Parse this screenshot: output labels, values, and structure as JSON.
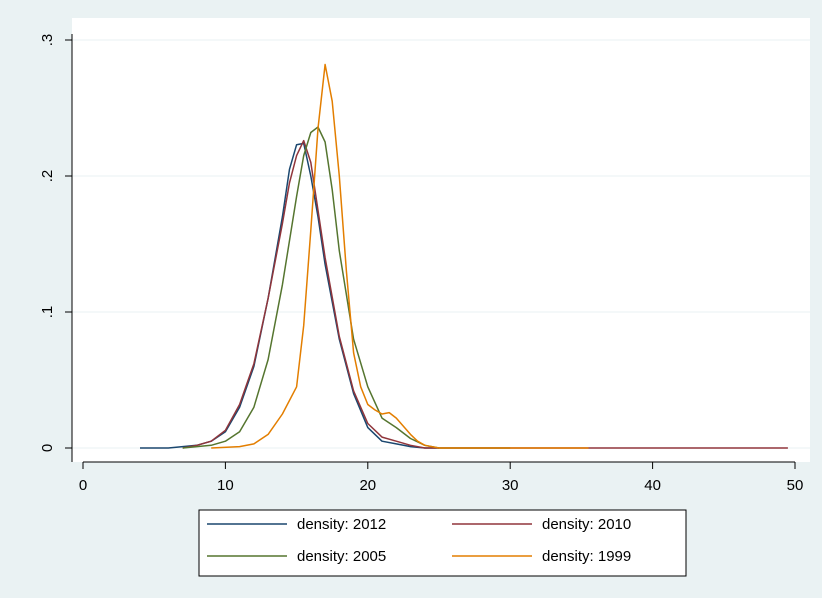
{
  "chart_data": {
    "type": "line",
    "title": "",
    "xlabel": "",
    "ylabel": "",
    "xlim": [
      0,
      50
    ],
    "ylim": [
      0,
      0.3
    ],
    "x_ticks": [
      {
        "value": 0,
        "label": "0"
      },
      {
        "value": 10,
        "label": "10"
      },
      {
        "value": 20,
        "label": "20"
      },
      {
        "value": 30,
        "label": "30"
      },
      {
        "value": 40,
        "label": "40"
      },
      {
        "value": 50,
        "label": "50"
      }
    ],
    "y_ticks": [
      {
        "value": 0,
        "label": "0"
      },
      {
        "value": 0.1,
        "label": ".1"
      },
      {
        "value": 0.2,
        "label": ".2"
      },
      {
        "value": 0.3,
        "label": ".3"
      }
    ],
    "grid": "horizontal",
    "legend_position": "bottom",
    "series": [
      {
        "name": "density: 2012",
        "color": "#1a476f",
        "points": [
          [
            4,
            0
          ],
          [
            6,
            0
          ],
          [
            7,
            0.001
          ],
          [
            8,
            0.002
          ],
          [
            9,
            0.005
          ],
          [
            10,
            0.012
          ],
          [
            11,
            0.03
          ],
          [
            12,
            0.06
          ],
          [
            13,
            0.11
          ],
          [
            14,
            0.17
          ],
          [
            14.5,
            0.205
          ],
          [
            15,
            0.223
          ],
          [
            15.5,
            0.224
          ],
          [
            16,
            0.2
          ],
          [
            16.5,
            0.17
          ],
          [
            17,
            0.135
          ],
          [
            18,
            0.08
          ],
          [
            19,
            0.04
          ],
          [
            20,
            0.015
          ],
          [
            21,
            0.005
          ],
          [
            22,
            0.003
          ],
          [
            23,
            0.001
          ],
          [
            24,
            0
          ],
          [
            25,
            0
          ]
        ]
      },
      {
        "name": "density: 2010",
        "color": "#90353b",
        "points": [
          [
            7,
            0
          ],
          [
            8,
            0.002
          ],
          [
            9,
            0.005
          ],
          [
            10,
            0.013
          ],
          [
            11,
            0.032
          ],
          [
            12,
            0.062
          ],
          [
            13,
            0.11
          ],
          [
            14,
            0.165
          ],
          [
            14.5,
            0.195
          ],
          [
            15,
            0.215
          ],
          [
            15.5,
            0.226
          ],
          [
            16,
            0.21
          ],
          [
            17,
            0.14
          ],
          [
            18,
            0.082
          ],
          [
            19,
            0.042
          ],
          [
            20,
            0.018
          ],
          [
            21,
            0.008
          ],
          [
            22,
            0.005
          ],
          [
            23,
            0.002
          ],
          [
            24,
            0
          ],
          [
            30,
            0
          ],
          [
            40,
            0
          ],
          [
            49.5,
            0
          ]
        ]
      },
      {
        "name": "density: 2005",
        "color": "#55752f",
        "points": [
          [
            7,
            0
          ],
          [
            9,
            0.002
          ],
          [
            10,
            0.005
          ],
          [
            11,
            0.012
          ],
          [
            12,
            0.03
          ],
          [
            13,
            0.065
          ],
          [
            14,
            0.12
          ],
          [
            15,
            0.185
          ],
          [
            15.5,
            0.215
          ],
          [
            16,
            0.232
          ],
          [
            16.5,
            0.236
          ],
          [
            17,
            0.225
          ],
          [
            17.5,
            0.19
          ],
          [
            18,
            0.145
          ],
          [
            19,
            0.08
          ],
          [
            20,
            0.045
          ],
          [
            21,
            0.022
          ],
          [
            22,
            0.015
          ],
          [
            23,
            0.007
          ],
          [
            24,
            0.002
          ],
          [
            25,
            0
          ],
          [
            30,
            0
          ]
        ]
      },
      {
        "name": "density: 1999",
        "color": "#e37e00",
        "points": [
          [
            9,
            0
          ],
          [
            11,
            0.001
          ],
          [
            12,
            0.003
          ],
          [
            13,
            0.01
          ],
          [
            14,
            0.025
          ],
          [
            15,
            0.045
          ],
          [
            15.5,
            0.09
          ],
          [
            16,
            0.16
          ],
          [
            16.5,
            0.235
          ],
          [
            17,
            0.282
          ],
          [
            17.5,
            0.255
          ],
          [
            18,
            0.2
          ],
          [
            18.5,
            0.13
          ],
          [
            19,
            0.07
          ],
          [
            19.5,
            0.045
          ],
          [
            20,
            0.032
          ],
          [
            20.5,
            0.028
          ],
          [
            21,
            0.025
          ],
          [
            21.5,
            0.026
          ],
          [
            22,
            0.022
          ],
          [
            22.5,
            0.016
          ],
          [
            23,
            0.01
          ],
          [
            23.5,
            0.005
          ],
          [
            24,
            0.002
          ],
          [
            25,
            0
          ],
          [
            35.5,
            0
          ]
        ]
      }
    ]
  }
}
